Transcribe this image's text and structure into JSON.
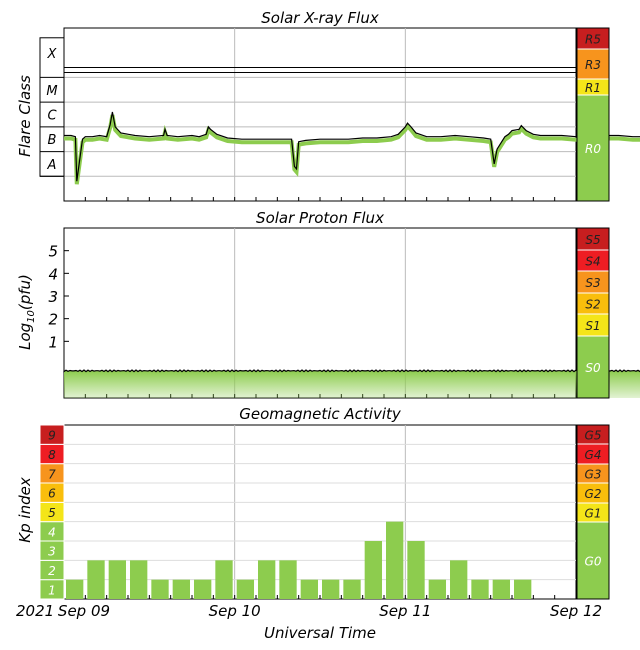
{
  "colors": {
    "green": "#8dcc4e",
    "yellow": "#f4e519",
    "orange_light": "#f9be0c",
    "orange": "#f7941d",
    "red_orange": "#ef6f1d",
    "red": "#ee1d23",
    "dark_red": "#c71e1f",
    "grid": "#bbbbbb",
    "line": "#000000"
  },
  "x_axis": {
    "label": "Universal Time",
    "start_prefix": "2021",
    "range_days": [
      0,
      3
    ],
    "ticks": [
      {
        "day": 0,
        "label": "Sep 09"
      },
      {
        "day": 1,
        "label": "Sep 10"
      },
      {
        "day": 2,
        "label": "Sep 11"
      },
      {
        "day": 3,
        "label": "Sep 12"
      }
    ]
  },
  "chart_data": [
    {
      "type": "line",
      "title": "Solar X-ray Flux",
      "ylabel": "Flare Class",
      "scale": "log",
      "ylim_log10_wm2": [
        -9,
        -2
      ],
      "flare_classes": [
        {
          "label": "A",
          "log10_min": -8
        },
        {
          "label": "B",
          "log10_min": -7
        },
        {
          "label": "C",
          "log10_min": -6
        },
        {
          "label": "M",
          "log10_min": -5
        },
        {
          "label": "X",
          "log10_min": -4
        }
      ],
      "series_x_hours": [
        0,
        1,
        1.6,
        1.8,
        2.6,
        3,
        4,
        5,
        6,
        6.5,
        6.8,
        7.2,
        8,
        10,
        12,
        14,
        14.2,
        14.5,
        16,
        18,
        19,
        20,
        20.3,
        20.6,
        21.5,
        23,
        25,
        26,
        28,
        29,
        30,
        32,
        32.4,
        32.7,
        33,
        34,
        36,
        38,
        40,
        42,
        44,
        46,
        47,
        48,
        48.3,
        48.8,
        49.5,
        51,
        53,
        55,
        57,
        59,
        60,
        60.5,
        60.9,
        62,
        62.5,
        63,
        64,
        64.3,
        65,
        66,
        67,
        68,
        70,
        72,
        74,
        76,
        78,
        80,
        82,
        84,
        85,
        86,
        86.3,
        86.8,
        88
      ],
      "series_log10_wm2": [
        -6.35,
        -6.35,
        -6.4,
        -8.2,
        -6.5,
        -6.4,
        -6.4,
        -6.35,
        -6.4,
        -5.9,
        -5.4,
        -6.0,
        -6.25,
        -6.35,
        -6.4,
        -6.35,
        -6.1,
        -6.35,
        -6.4,
        -6.35,
        -6.4,
        -6.3,
        -6.0,
        -6.1,
        -6.3,
        -6.45,
        -6.5,
        -6.5,
        -6.5,
        -6.5,
        -6.5,
        -6.5,
        -7.6,
        -7.7,
        -6.6,
        -6.55,
        -6.5,
        -6.5,
        -6.5,
        -6.45,
        -6.45,
        -6.4,
        -6.3,
        -6.0,
        -5.85,
        -6.0,
        -6.25,
        -6.4,
        -6.4,
        -6.35,
        -6.4,
        -6.45,
        -6.5,
        -7.5,
        -6.9,
        -6.4,
        -6.3,
        -6.15,
        -6.1,
        -5.95,
        -6.15,
        -6.3,
        -6.35,
        -6.35,
        -6.35,
        -6.4,
        -6.4,
        -6.35,
        -6.35,
        -6.4,
        -6.4,
        -6.4,
        -6.35,
        -6.45,
        -6.2,
        -6.45,
        -6.45
      ],
      "scale_bands": [
        {
          "label": "R5",
          "color": "dark_red"
        },
        {
          "label": "R3",
          "color": "orange"
        },
        {
          "label": "R1",
          "color": "yellow"
        },
        {
          "label": "R0",
          "color": "green"
        }
      ]
    },
    {
      "type": "area",
      "title": "Solar Proton Flux",
      "ylabel": "Log10(pfu)",
      "ylabel_parts": {
        "pre": "Log",
        "sub": "10",
        "post": "(pfu)"
      },
      "ylim_log10_pfu": [
        -1.5,
        6
      ],
      "tick_labels": [
        1,
        2,
        3,
        4,
        5
      ],
      "level_log10_pfu": -0.3,
      "scale_bands": [
        {
          "label": "S5",
          "color": "dark_red"
        },
        {
          "label": "S4",
          "color": "red"
        },
        {
          "label": "S3",
          "color": "orange"
        },
        {
          "label": "S2",
          "color": "orange_light"
        },
        {
          "label": "S1",
          "color": "yellow"
        },
        {
          "label": "S0",
          "color": "green"
        }
      ]
    },
    {
      "type": "bar",
      "title": "Geomagnetic Activity",
      "ylabel": "Kp index",
      "ylim": [
        0,
        9
      ],
      "bar_hours": 3,
      "values": [
        1,
        2,
        2,
        2,
        1,
        1,
        1,
        2,
        1,
        2,
        2,
        1,
        1,
        1,
        3,
        4,
        3,
        1,
        2,
        1,
        1,
        1
      ],
      "kp_labels": [
        {
          "label": "1",
          "color": "green"
        },
        {
          "label": "2",
          "color": "green"
        },
        {
          "label": "3",
          "color": "green"
        },
        {
          "label": "4",
          "color": "green"
        },
        {
          "label": "5",
          "color": "yellow"
        },
        {
          "label": "6",
          "color": "orange_light"
        },
        {
          "label": "7",
          "color": "orange"
        },
        {
          "label": "8",
          "color": "red"
        },
        {
          "label": "9",
          "color": "dark_red"
        }
      ],
      "scale_bands": [
        {
          "label": "G5",
          "color": "dark_red"
        },
        {
          "label": "G4",
          "color": "red"
        },
        {
          "label": "G3",
          "color": "orange"
        },
        {
          "label": "G2",
          "color": "orange_light"
        },
        {
          "label": "G1",
          "color": "yellow"
        },
        {
          "label": "G0",
          "color": "green"
        }
      ]
    }
  ]
}
